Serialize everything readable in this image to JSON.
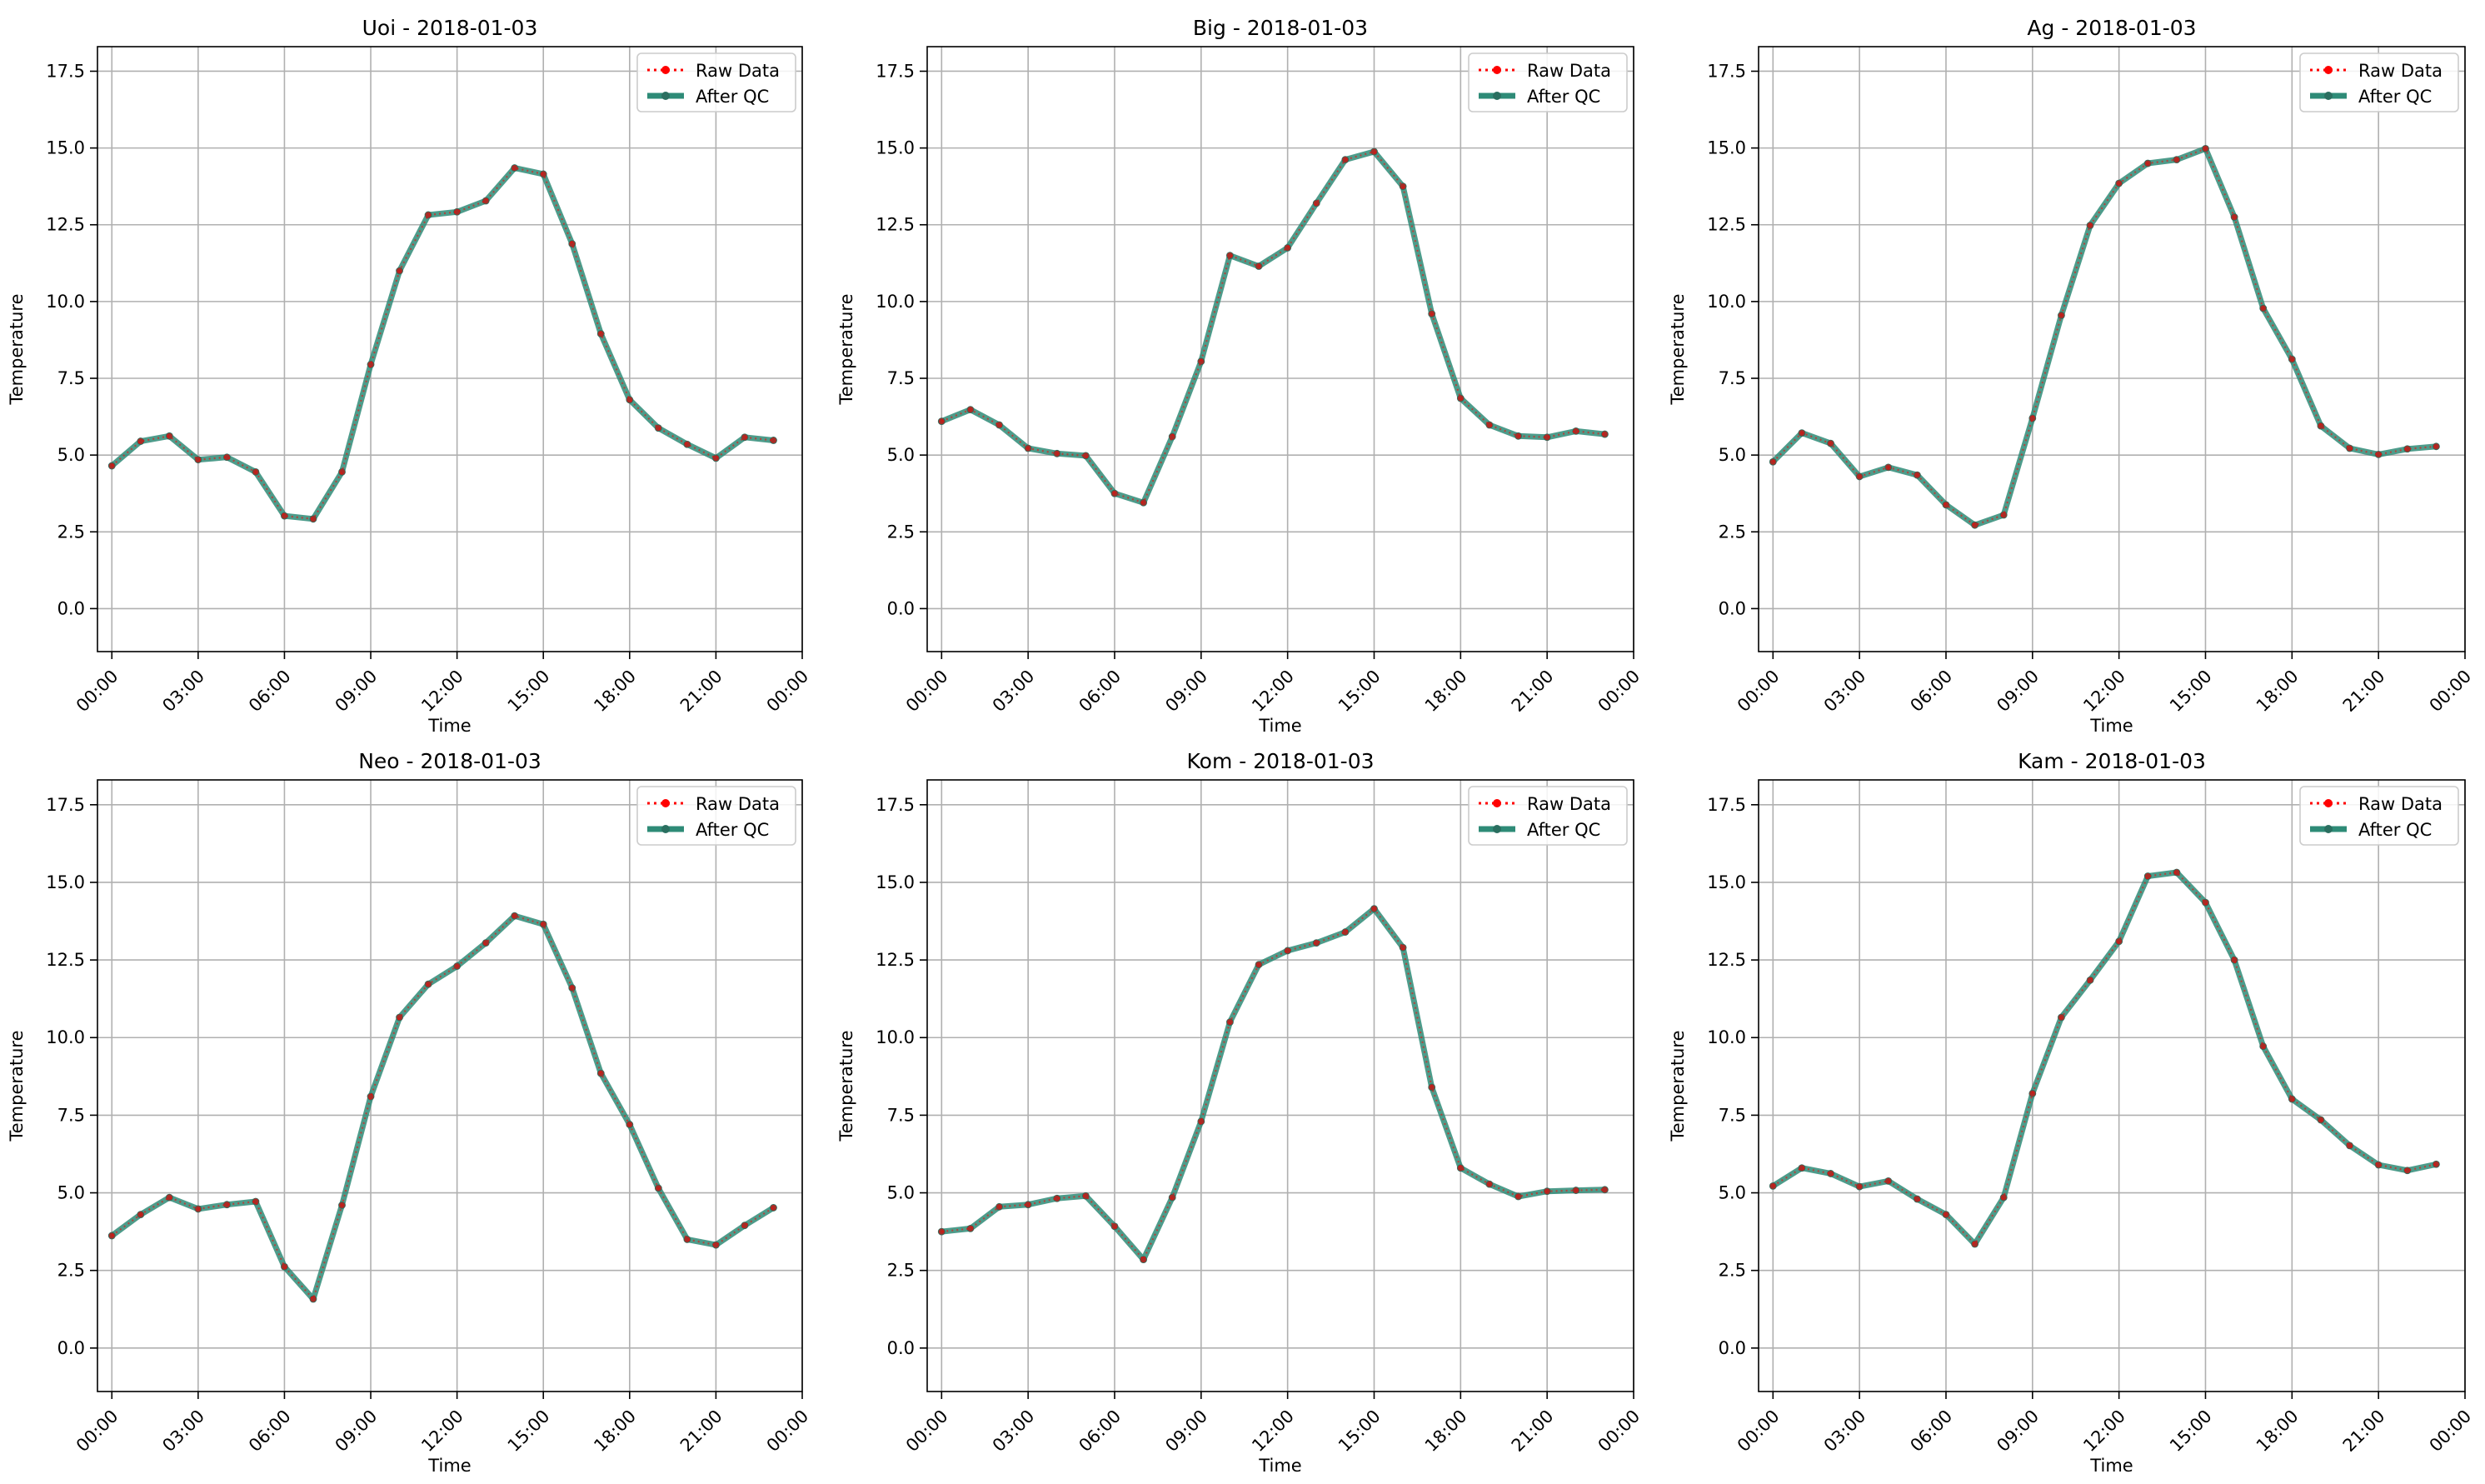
{
  "figure": {
    "x_label": "Time",
    "y_label": "Temperature",
    "legend": [
      "Raw Data",
      "After QC"
    ]
  },
  "colors": {
    "raw": "#ff0000",
    "qc": "#2e8b77",
    "qc_marker": "#2a6f60",
    "grid": "#b0b0b0"
  },
  "chart_data": [
    {
      "type": "line",
      "title": "Uoi - 2018-01-03",
      "xlabel": "Time",
      "ylabel": "Temperature",
      "x_ticks": [
        "00:00",
        "03:00",
        "06:00",
        "09:00",
        "12:00",
        "15:00",
        "18:00",
        "21:00",
        "00:00"
      ],
      "y_ticks": [
        "0.0",
        "2.5",
        "5.0",
        "7.5",
        "10.0",
        "12.5",
        "15.0",
        "17.5"
      ],
      "xlim_hours": [
        -0.5,
        24
      ],
      "ylim": [
        -1.4,
        18.3
      ],
      "grid": true,
      "legend_position": "top-right",
      "series": [
        {
          "name": "Raw Data",
          "values": [
            4.65,
            5.45,
            5.62,
            4.85,
            4.93,
            4.45,
            3.02,
            2.92,
            4.45,
            7.95,
            11.0,
            12.82,
            12.92,
            13.28,
            14.35,
            14.15,
            11.88,
            8.95,
            6.8,
            5.88,
            5.35,
            4.9,
            5.58,
            5.48
          ]
        },
        {
          "name": "After QC",
          "values": [
            4.65,
            5.45,
            5.62,
            4.85,
            4.93,
            4.45,
            3.02,
            2.92,
            4.45,
            7.95,
            11.0,
            12.82,
            12.92,
            13.28,
            14.35,
            14.15,
            11.88,
            8.95,
            6.8,
            5.88,
            5.35,
            4.9,
            5.58,
            5.48
          ]
        }
      ]
    },
    {
      "type": "line",
      "title": "Big - 2018-01-03",
      "xlabel": "Time",
      "ylabel": "Temperature",
      "x_ticks": [
        "00:00",
        "03:00",
        "06:00",
        "09:00",
        "12:00",
        "15:00",
        "18:00",
        "21:00",
        "00:00"
      ],
      "y_ticks": [
        "0.0",
        "2.5",
        "5.0",
        "7.5",
        "10.0",
        "12.5",
        "15.0",
        "17.5"
      ],
      "xlim_hours": [
        -0.5,
        24
      ],
      "ylim": [
        -1.4,
        18.3
      ],
      "grid": true,
      "legend_position": "top-right",
      "series": [
        {
          "name": "Raw Data",
          "values": [
            6.1,
            6.48,
            5.98,
            5.22,
            5.05,
            4.98,
            3.75,
            3.45,
            5.6,
            8.05,
            11.5,
            11.15,
            11.75,
            13.2,
            14.62,
            14.88,
            13.75,
            9.6,
            6.85,
            5.98,
            5.62,
            5.58,
            5.78,
            5.68
          ]
        },
        {
          "name": "After QC",
          "values": [
            6.1,
            6.48,
            5.98,
            5.22,
            5.05,
            4.98,
            3.75,
            3.45,
            5.6,
            8.05,
            11.5,
            11.15,
            11.75,
            13.2,
            14.62,
            14.88,
            13.75,
            9.6,
            6.85,
            5.98,
            5.62,
            5.58,
            5.78,
            5.68
          ]
        }
      ]
    },
    {
      "type": "line",
      "title": "Ag - 2018-01-03",
      "xlabel": "Time",
      "ylabel": "Temperature",
      "x_ticks": [
        "00:00",
        "03:00",
        "06:00",
        "09:00",
        "12:00",
        "15:00",
        "18:00",
        "21:00",
        "00:00"
      ],
      "y_ticks": [
        "0.0",
        "2.5",
        "5.0",
        "7.5",
        "10.0",
        "12.5",
        "15.0",
        "17.5"
      ],
      "xlim_hours": [
        -0.5,
        24
      ],
      "ylim": [
        -1.4,
        18.3
      ],
      "grid": true,
      "legend_position": "top-right",
      "series": [
        {
          "name": "Raw Data",
          "values": [
            4.78,
            5.72,
            5.38,
            4.3,
            4.6,
            4.35,
            3.38,
            2.72,
            3.05,
            6.2,
            9.55,
            12.48,
            13.85,
            14.5,
            14.62,
            14.98,
            12.75,
            9.78,
            8.12,
            5.95,
            5.22,
            5.02,
            5.2,
            5.28
          ]
        },
        {
          "name": "After QC",
          "values": [
            4.78,
            5.72,
            5.38,
            4.3,
            4.6,
            4.35,
            3.38,
            2.72,
            3.05,
            6.2,
            9.55,
            12.48,
            13.85,
            14.5,
            14.62,
            14.98,
            12.75,
            9.78,
            8.12,
            5.95,
            5.22,
            5.02,
            5.2,
            5.28
          ]
        }
      ]
    },
    {
      "type": "line",
      "title": "Neo - 2018-01-03",
      "xlabel": "Time",
      "ylabel": "Temperature",
      "x_ticks": [
        "00:00",
        "03:00",
        "06:00",
        "09:00",
        "12:00",
        "15:00",
        "18:00",
        "21:00",
        "00:00"
      ],
      "y_ticks": [
        "0.0",
        "2.5",
        "5.0",
        "7.5",
        "10.0",
        "12.5",
        "15.0",
        "17.5"
      ],
      "xlim_hours": [
        -0.5,
        24
      ],
      "ylim": [
        -1.4,
        18.3
      ],
      "grid": true,
      "legend_position": "top-right",
      "series": [
        {
          "name": "Raw Data",
          "values": [
            3.62,
            4.3,
            4.85,
            4.48,
            4.62,
            4.72,
            2.62,
            1.58,
            4.6,
            8.1,
            10.65,
            11.72,
            12.3,
            13.05,
            13.92,
            13.65,
            11.6,
            8.85,
            7.2,
            5.15,
            3.5,
            3.32,
            3.95,
            4.52
          ]
        },
        {
          "name": "After QC",
          "values": [
            3.62,
            4.3,
            4.85,
            4.48,
            4.62,
            4.72,
            2.62,
            1.58,
            4.6,
            8.1,
            10.65,
            11.72,
            12.3,
            13.05,
            13.92,
            13.65,
            11.6,
            8.85,
            7.2,
            5.15,
            3.5,
            3.32,
            3.95,
            4.52
          ]
        }
      ]
    },
    {
      "type": "line",
      "title": "Kom - 2018-01-03",
      "xlabel": "Time",
      "ylabel": "Temperature",
      "x_ticks": [
        "00:00",
        "03:00",
        "06:00",
        "09:00",
        "12:00",
        "15:00",
        "18:00",
        "21:00",
        "00:00"
      ],
      "y_ticks": [
        "0.0",
        "2.5",
        "5.0",
        "7.5",
        "10.0",
        "12.5",
        "15.0",
        "17.5"
      ],
      "xlim_hours": [
        -0.5,
        24
      ],
      "ylim": [
        -1.4,
        18.3
      ],
      "grid": true,
      "legend_position": "top-right",
      "series": [
        {
          "name": "Raw Data",
          "values": [
            3.75,
            3.85,
            4.55,
            4.62,
            4.82,
            4.9,
            3.92,
            2.85,
            4.85,
            7.3,
            10.5,
            12.35,
            12.8,
            13.05,
            13.4,
            14.15,
            12.9,
            8.4,
            5.8,
            5.28,
            4.88,
            5.05,
            5.08,
            5.1
          ]
        },
        {
          "name": "After QC",
          "values": [
            3.75,
            3.85,
            4.55,
            4.62,
            4.82,
            4.9,
            3.92,
            2.85,
            4.85,
            7.3,
            10.5,
            12.35,
            12.8,
            13.05,
            13.4,
            14.15,
            12.9,
            8.4,
            5.8,
            5.28,
            4.88,
            5.05,
            5.08,
            5.1
          ]
        }
      ]
    },
    {
      "type": "line",
      "title": "Kam - 2018-01-03",
      "xlabel": "Time",
      "ylabel": "Temperature",
      "x_ticks": [
        "00:00",
        "03:00",
        "06:00",
        "09:00",
        "12:00",
        "15:00",
        "18:00",
        "21:00",
        "00:00"
      ],
      "y_ticks": [
        "0.0",
        "2.5",
        "5.0",
        "7.5",
        "10.0",
        "12.5",
        "15.0",
        "17.5"
      ],
      "xlim_hours": [
        -0.5,
        24
      ],
      "ylim": [
        -1.4,
        18.3
      ],
      "grid": true,
      "legend_position": "top-right",
      "series": [
        {
          "name": "Raw Data",
          "values": [
            5.22,
            5.8,
            5.62,
            5.2,
            5.38,
            4.8,
            4.3,
            3.35,
            4.85,
            8.2,
            10.65,
            11.85,
            13.1,
            15.2,
            15.32,
            14.35,
            12.5,
            9.72,
            8.02,
            7.35,
            6.52,
            5.9,
            5.72,
            5.92
          ]
        },
        {
          "name": "After QC",
          "values": [
            5.22,
            5.8,
            5.62,
            5.2,
            5.38,
            4.8,
            4.3,
            3.35,
            4.85,
            8.2,
            10.65,
            11.85,
            13.1,
            15.2,
            15.32,
            14.35,
            12.5,
            9.72,
            8.02,
            7.35,
            6.52,
            5.9,
            5.72,
            5.92
          ]
        }
      ]
    }
  ]
}
